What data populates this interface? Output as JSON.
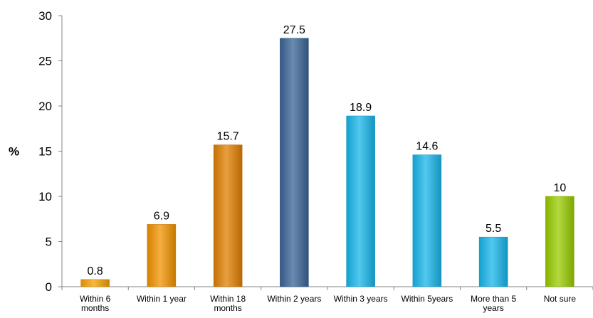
{
  "chart_data": {
    "type": "bar",
    "title": "",
    "xlabel": "",
    "ylabel": "%",
    "ylim": [
      0,
      30
    ],
    "yticks": [
      0,
      5,
      10,
      15,
      20,
      25,
      30
    ],
    "grid": false,
    "legend": "none",
    "categories": [
      "Within 6 months",
      "Within 1 year",
      "Within 18 months",
      "Within 2 years",
      "Within 3 years",
      "Within 5years",
      "More than 5 years",
      "Not sure"
    ],
    "category_lines": [
      [
        "Within 6",
        "months"
      ],
      [
        "Within 1 year"
      ],
      [
        "Within 18",
        "months"
      ],
      [
        "Within 2 years"
      ],
      [
        "Within 3 years"
      ],
      [
        "Within 5years"
      ],
      [
        "More than 5",
        "years"
      ],
      [
        "Not sure"
      ]
    ],
    "values": [
      0.8,
      6.9,
      15.7,
      27.5,
      18.9,
      14.6,
      5.5,
      10
    ],
    "value_labels": [
      "0.8",
      "6.9",
      "15.7",
      "27.5",
      "18.9",
      "14.6",
      "5.5",
      "10"
    ],
    "colors": [
      "#f5a000",
      "#f29300",
      "#e07f00",
      "#3a6496",
      "#17b6ea",
      "#17b6ea",
      "#17b6ea",
      "#99cc00"
    ]
  }
}
